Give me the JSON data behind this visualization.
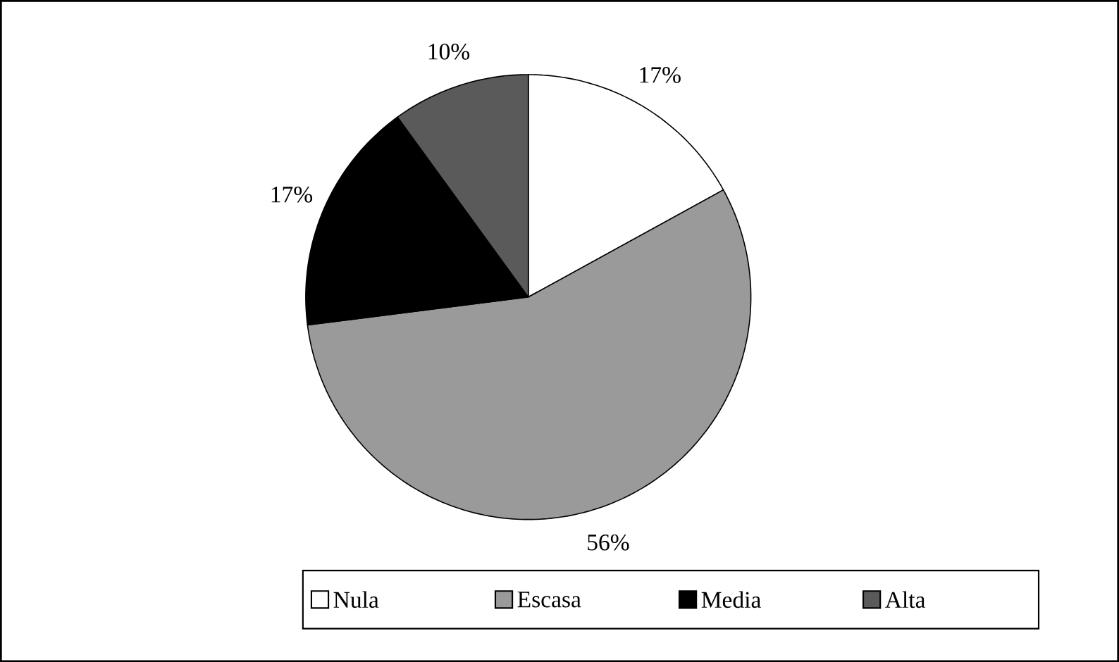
{
  "chart_data": {
    "type": "pie",
    "categories": [
      "Nula",
      "Escasa",
      "Media",
      "Alta"
    ],
    "values": [
      17,
      56,
      17,
      10
    ],
    "colors": [
      "#ffffff",
      "#9a9a9a",
      "#000000",
      "#5a5a5a"
    ],
    "value_labels": [
      "17%",
      "56%",
      "17%",
      "10%"
    ],
    "legend": "bottom"
  }
}
